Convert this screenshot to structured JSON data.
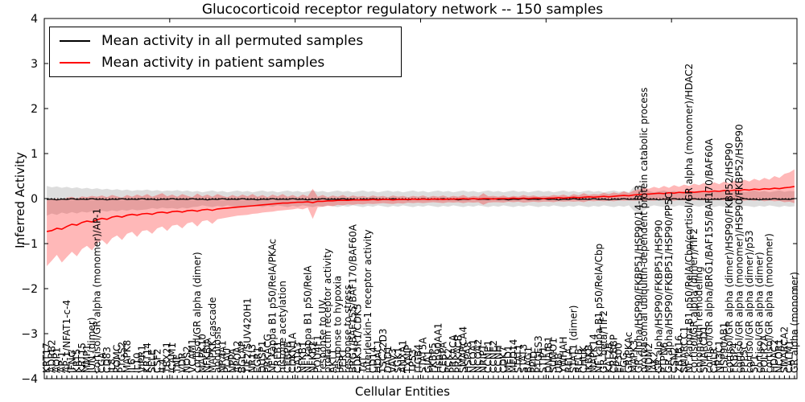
{
  "title": "Glucocorticoid receptor regulatory network -- 150 samples",
  "legend": {
    "items": [
      {
        "label": "Mean activity in all permuted samples",
        "color": "#000000"
      },
      {
        "label": "Mean activity in patient samples",
        "color": "#ff0000"
      }
    ]
  },
  "axes": {
    "ylabel": "Inferred Activity",
    "xlabel": "Cellular Entities",
    "ytick_values": [
      -4,
      -3,
      -2,
      -1,
      0,
      1,
      2,
      3,
      4
    ],
    "ytick_labels": [
      "−4",
      "−3",
      "−2",
      "−1",
      "0",
      "1",
      "2",
      "3",
      "4"
    ],
    "xtick_index_positions": [
      0,
      25,
      50,
      75,
      100,
      125,
      150
    ]
  },
  "chart_data": {
    "type": "line",
    "n": 150,
    "ylim": [
      -4,
      4
    ],
    "title": "Glucocorticoid receptor regulatory network -- 150 samples",
    "xlabel": "Cellular Entities",
    "ylabel": "Inferred Activity",
    "legend_position": "upper left",
    "grid": false,
    "zero_line": {
      "style": "dotted",
      "color": "#000000",
      "y": 0
    },
    "categories": [
      "KRT17",
      "ADRB2",
      "AQP1",
      "AP-1",
      "AP-1/NFAT1-c-4",
      "IFNG",
      "KRT5",
      "KRT15",
      "MMP1",
      "JUN (dimer)",
      "cortisol/GR alpha (monomer)/AP-1",
      "CGA",
      "CD83",
      "IL8",
      "POMC",
      "PTGS2",
      "MAPK8",
      "IL6",
      "IL10",
      "VIPR1",
      "KRT14",
      "SELE",
      "CSF2",
      "IL4",
      "TBX21",
      "ICAM1",
      "TNF",
      "VDR",
      "NOS2",
      "VCAM1",
      "cortisol/GR alpha (dimer)",
      "MAPK10",
      "NFKBIA",
      "MAPKK cascade",
      "apoptosis",
      "NR4A1",
      "PLAU",
      "NPPA",
      "APOA2",
      "BGLAP",
      "TIF2/SUV420H1",
      "NR1I3",
      "EGR1",
      "DUSP1",
      "PRKACG",
      "NF kappa B1 p50/RelA/PKAc",
      "CREB1",
      "histone acetylation",
      "CEBPB",
      "CDKN1A",
      "GATA3",
      "NFKB1",
      "NF kappa B1 p50/RelA",
      "NFKB2",
      "POU4F1",
      "response to UV",
      "prolactin receptor activity",
      "AKT1",
      "response to hypoxia",
      "PER1",
      "response to stress",
      "BRG1/BAF155/BAF170/BAF60A",
      "CDK5R1/CDK5",
      "TAT",
      "interleukin-1 receptor activity",
      "CD14",
      "HDAC1",
      "TSC22D3",
      "DAD1",
      "VAV3",
      "SGK1",
      "ANXA1",
      "TXNIP",
      "TP53",
      "ITGB4",
      "STAT5A",
      "GJA1",
      "FKBP5",
      "Hsp90AA1",
      "CEBPA",
      "PCK2",
      "PRKACA",
      "PRKACB",
      "SMARCA4",
      "HSPA8",
      "NCOA1",
      "NCOA2",
      "NRIP1",
      "CCNE1",
      "CCNE2",
      "CCNH",
      "CDK7",
      "MED1",
      "MED14",
      "STAT1",
      "STAT3",
      "BAG1",
      "PPID",
      "PTGES3",
      "STIP1",
      "DNAJB1",
      "SUMO1",
      "UBB",
      "YWHAH",
      "RELA",
      "STAT1 (dimer)",
      "RELB",
      "CHUK",
      "IKBKB",
      "MAPK14",
      "NF kappa B1 p50/RelA/Cbp",
      "GR beta/TIF2",
      "KAT2B",
      "CREBBP",
      "EP300",
      "FGG",
      "GR/PKAc",
      "MAPK3",
      "GR alpha/HSP90/FKBP51/HSP90/14-3-3",
      "proteasomal ubiquitin-dependent protein catabolic process",
      "MDM2",
      "JAK2",
      "GR alpha/HSP90/FKBP51/HSP90",
      "PTPN6",
      "GR alpha/HSP90/FKBP51/HSP90/PP5C",
      "CSN2",
      "ZBTB16",
      "SMARCC1",
      "NF kappa B1 p50/RelA/Cbp/cortisol/GR alpha (monomer)/HDAC2",
      "cortisol/GR alpha (dimer)/TIF2",
      "chromatin remodeling",
      "SMARCD1",
      "cortisol/GR alpha/BRG1/BAF155/BAF170/BAF60A",
      "CALR",
      "NR3C1",
      "HSP90AB1",
      "cortisol/GR alpha (dimer)/HSP90/FKBP52/HSP90",
      "FKBP4",
      "cortisol/GR alpha (monomer)/HSP90/FKBP52/HSP90",
      "PPP5C",
      "cortisol/GR alpha (dimer)/p53",
      "SP1",
      "cortisol/GR alpha (dimer)",
      "POLR2A",
      "cortisol/GR alpha (monomer)",
      "HDAC2",
      "NCOR1",
      "SMARCA2",
      "CALM1",
      "GR alpha (monomer)"
    ],
    "series": [
      {
        "name": "Mean activity in all permuted samples",
        "color": "#000000",
        "width": 1.2,
        "values": [
          -0.02,
          -0.01,
          -0.03,
          -0.01,
          -0.02,
          0.0,
          -0.02,
          -0.01,
          -0.02,
          0.0,
          -0.02,
          -0.01,
          -0.03,
          -0.01,
          -0.02,
          0.0,
          -0.02,
          -0.01,
          -0.02,
          0.0,
          -0.02,
          -0.01,
          -0.03,
          -0.01,
          -0.02,
          0.0,
          -0.02,
          -0.01,
          -0.02,
          0.0,
          -0.02,
          -0.01,
          -0.03,
          -0.01,
          -0.02,
          0.0,
          -0.02,
          -0.01,
          -0.02,
          0.0,
          -0.02,
          -0.01,
          -0.03,
          -0.01,
          -0.02,
          0.0,
          -0.02,
          -0.01,
          -0.02,
          0.0,
          -0.02,
          -0.01,
          -0.03,
          -0.01,
          -0.02,
          0.0,
          -0.02,
          -0.01,
          -0.02,
          0.0,
          -0.02,
          -0.01,
          -0.03,
          -0.01,
          -0.02,
          0.0,
          -0.02,
          -0.01,
          -0.02,
          0.0,
          -0.02,
          -0.01,
          -0.03,
          -0.01,
          -0.02,
          0.0,
          -0.02,
          -0.01,
          -0.02,
          0.0,
          -0.02,
          -0.01,
          -0.03,
          -0.01,
          -0.02,
          0.0,
          -0.02,
          -0.01,
          -0.02,
          0.0,
          -0.02,
          -0.01,
          -0.03,
          -0.01,
          -0.02,
          0.0,
          -0.02,
          -0.01,
          -0.02,
          0.0,
          -0.02,
          -0.01,
          -0.03,
          -0.01,
          -0.02,
          0.0,
          -0.02,
          -0.01,
          -0.02,
          0.0,
          -0.02,
          -0.01,
          -0.03,
          -0.01,
          -0.02,
          0.0,
          -0.02,
          -0.01,
          -0.02,
          0.0,
          -0.02,
          -0.01,
          -0.03,
          -0.01,
          -0.02,
          0.0,
          -0.02,
          -0.01,
          -0.02,
          0.0,
          -0.02,
          -0.01,
          -0.03,
          -0.01,
          -0.02,
          0.0,
          -0.02,
          -0.01,
          -0.02,
          0.0,
          -0.02,
          -0.01,
          -0.03,
          -0.01,
          -0.02,
          0.0,
          -0.02,
          -0.01,
          -0.02,
          0.0
        ]
      },
      {
        "name": "Mean activity in patient samples",
        "color": "#ff0000",
        "width": 1.6,
        "values": [
          -0.73,
          -0.71,
          -0.66,
          -0.68,
          -0.62,
          -0.57,
          -0.59,
          -0.53,
          -0.5,
          -0.52,
          -0.47,
          -0.44,
          -0.46,
          -0.41,
          -0.39,
          -0.41,
          -0.37,
          -0.35,
          -0.37,
          -0.34,
          -0.33,
          -0.35,
          -0.31,
          -0.3,
          -0.32,
          -0.29,
          -0.28,
          -0.3,
          -0.27,
          -0.26,
          -0.28,
          -0.25,
          -0.24,
          -0.26,
          -0.23,
          -0.22,
          -0.21,
          -0.2,
          -0.19,
          -0.18,
          -0.17,
          -0.16,
          -0.15,
          -0.14,
          -0.13,
          -0.12,
          -0.11,
          -0.1,
          -0.1,
          -0.09,
          -0.08,
          -0.08,
          -0.07,
          -0.09,
          -0.06,
          -0.06,
          -0.05,
          -0.05,
          -0.04,
          -0.04,
          -0.04,
          -0.03,
          -0.03,
          -0.03,
          -0.03,
          -0.02,
          -0.03,
          -0.02,
          -0.02,
          -0.03,
          -0.02,
          -0.02,
          -0.02,
          -0.01,
          -0.02,
          -0.01,
          -0.02,
          -0.01,
          -0.01,
          -0.02,
          -0.01,
          -0.01,
          -0.01,
          0.0,
          -0.01,
          0.0,
          -0.01,
          0.0,
          0.0,
          -0.01,
          0.0,
          0.0,
          0.0,
          0.01,
          0.0,
          0.01,
          0.0,
          0.01,
          0.01,
          0.0,
          0.01,
          0.01,
          0.02,
          0.01,
          0.02,
          0.03,
          0.02,
          0.03,
          0.04,
          0.03,
          0.04,
          0.05,
          0.04,
          0.05,
          0.06,
          0.07,
          0.06,
          0.08,
          0.09,
          0.1,
          0.1,
          0.11,
          0.12,
          0.11,
          0.13,
          0.12,
          0.14,
          0.13,
          0.15,
          0.14,
          0.15,
          0.16,
          0.15,
          0.17,
          0.16,
          0.18,
          0.17,
          0.19,
          0.18,
          0.2,
          0.19,
          0.21,
          0.2,
          0.22,
          0.21,
          0.23,
          0.22,
          0.24,
          0.25,
          0.27
        ]
      }
    ],
    "bands": [
      {
        "name": "permuted-range-band",
        "color": "#bbbbbb",
        "opacity": 0.5,
        "hi": [
          0.28,
          0.25,
          0.27,
          0.24,
          0.26,
          0.23,
          0.25,
          0.22,
          0.24,
          0.21,
          0.23,
          0.2,
          0.22,
          0.19,
          0.21,
          0.18,
          0.2,
          0.17,
          0.19,
          0.18,
          0.2,
          0.17,
          0.19,
          0.16,
          0.18,
          0.17,
          0.19,
          0.16,
          0.18,
          0.15,
          0.17,
          0.14,
          0.16,
          0.18,
          0.15,
          0.17,
          0.14,
          0.16,
          0.18,
          0.15,
          0.17,
          0.14,
          0.16,
          0.18,
          0.15,
          0.17,
          0.14,
          0.16,
          0.18,
          0.15,
          0.17,
          0.14,
          0.16,
          0.18,
          0.15,
          0.17,
          0.14,
          0.16,
          0.18,
          0.15,
          0.17,
          0.14,
          0.16,
          0.18,
          0.15,
          0.17,
          0.14,
          0.16,
          0.18,
          0.15,
          0.17,
          0.14,
          0.16,
          0.18,
          0.15,
          0.17,
          0.14,
          0.16,
          0.18,
          0.15,
          0.17,
          0.14,
          0.16,
          0.18,
          0.15,
          0.17,
          0.14,
          0.16,
          0.18,
          0.15,
          0.17,
          0.14,
          0.16,
          0.18,
          0.15,
          0.17,
          0.14,
          0.16,
          0.18,
          0.15,
          0.17,
          0.14,
          0.16,
          0.18,
          0.15,
          0.17,
          0.14,
          0.16,
          0.18,
          0.15,
          0.17,
          0.14,
          0.16,
          0.18,
          0.15,
          0.17,
          0.14,
          0.26,
          0.3,
          0.26,
          0.17,
          0.14,
          0.16,
          0.18,
          0.15,
          0.17,
          0.14,
          0.16,
          0.18,
          0.15,
          0.17,
          0.14,
          0.16,
          0.18,
          0.15,
          0.17,
          0.14,
          0.16,
          0.18,
          0.15,
          0.16,
          0.18,
          0.15,
          0.17,
          0.14,
          0.16,
          0.18,
          0.15,
          0.17,
          0.16
        ],
        "lo": [
          -0.38,
          -0.33,
          -0.36,
          -0.31,
          -0.34,
          -0.3,
          -0.33,
          -0.29,
          -0.31,
          -0.28,
          -0.3,
          -0.27,
          -0.29,
          -0.26,
          -0.28,
          -0.25,
          -0.27,
          -0.24,
          -0.26,
          -0.25,
          -0.24,
          -0.21,
          -0.23,
          -0.2,
          -0.22,
          -0.21,
          -0.23,
          -0.2,
          -0.22,
          -0.19,
          -0.18,
          -0.15,
          -0.17,
          -0.19,
          -0.16,
          -0.18,
          -0.15,
          -0.17,
          -0.19,
          -0.16,
          -0.18,
          -0.15,
          -0.17,
          -0.19,
          -0.16,
          -0.18,
          -0.15,
          -0.17,
          -0.19,
          -0.16,
          -0.18,
          -0.15,
          -0.17,
          -0.19,
          -0.16,
          -0.18,
          -0.15,
          -0.17,
          -0.19,
          -0.16,
          -0.18,
          -0.15,
          -0.17,
          -0.19,
          -0.16,
          -0.18,
          -0.15,
          -0.17,
          -0.19,
          -0.16,
          -0.18,
          -0.15,
          -0.17,
          -0.19,
          -0.16,
          -0.18,
          -0.15,
          -0.17,
          -0.19,
          -0.16,
          -0.18,
          -0.15,
          -0.17,
          -0.19,
          -0.16,
          -0.18,
          -0.15,
          -0.17,
          -0.19,
          -0.16,
          -0.18,
          -0.15,
          -0.17,
          -0.19,
          -0.16,
          -0.18,
          -0.15,
          -0.17,
          -0.19,
          -0.16,
          -0.18,
          -0.15,
          -0.17,
          -0.19,
          -0.16,
          -0.18,
          -0.15,
          -0.17,
          -0.19,
          -0.16,
          -0.18,
          -0.15,
          -0.17,
          -0.19,
          -0.16,
          -0.18,
          -0.15,
          -0.27,
          -0.32,
          -0.27,
          -0.18,
          -0.15,
          -0.17,
          -0.19,
          -0.16,
          -0.18,
          -0.15,
          -0.17,
          -0.19,
          -0.16,
          -0.18,
          -0.15,
          -0.17,
          -0.19,
          -0.16,
          -0.18,
          -0.15,
          -0.17,
          -0.19,
          -0.16,
          -0.17,
          -0.19,
          -0.16,
          -0.18,
          -0.15,
          -0.17,
          -0.19,
          -0.16,
          -0.18,
          -0.17
        ]
      },
      {
        "name": "patient-range-band",
        "color": "#ff0000",
        "opacity": 0.28,
        "hi": [
          -0.04,
          -0.02,
          0.0,
          -0.03,
          0.02,
          0.04,
          0.0,
          0.05,
          0.03,
          0.06,
          0.04,
          0.07,
          0.03,
          0.08,
          0.05,
          0.02,
          0.08,
          0.04,
          0.09,
          0.05,
          0.1,
          0.04,
          0.08,
          0.12,
          0.05,
          0.09,
          0.04,
          0.1,
          0.06,
          0.03,
          0.11,
          0.05,
          0.09,
          0.04,
          0.1,
          0.06,
          0.03,
          0.08,
          0.04,
          0.09,
          0.05,
          0.1,
          0.04,
          0.08,
          0.03,
          0.09,
          0.05,
          0.1,
          0.04,
          0.08,
          0.03,
          0.09,
          0.05,
          0.22,
          0.04,
          0.08,
          0.03,
          0.07,
          0.04,
          0.08,
          0.03,
          0.07,
          0.04,
          0.06,
          0.03,
          0.07,
          0.04,
          0.06,
          0.03,
          0.07,
          0.04,
          0.06,
          0.03,
          0.06,
          0.04,
          0.07,
          0.03,
          0.06,
          0.04,
          0.07,
          0.03,
          0.06,
          0.04,
          0.08,
          0.03,
          0.06,
          0.04,
          0.12,
          0.05,
          0.06,
          0.04,
          0.07,
          0.03,
          0.06,
          0.04,
          0.08,
          0.05,
          0.07,
          0.04,
          0.06,
          0.05,
          0.08,
          0.06,
          0.09,
          0.05,
          0.1,
          0.07,
          0.12,
          0.08,
          0.1,
          0.09,
          0.13,
          0.1,
          0.14,
          0.11,
          0.16,
          0.12,
          0.18,
          0.2,
          0.24,
          0.22,
          0.26,
          0.23,
          0.28,
          0.24,
          0.3,
          0.26,
          0.31,
          0.28,
          0.33,
          0.3,
          0.35,
          0.31,
          0.36,
          0.32,
          0.38,
          0.34,
          0.4,
          0.36,
          0.42,
          0.38,
          0.44,
          0.4,
          0.46,
          0.42,
          0.5,
          0.46,
          0.55,
          0.58,
          0.65
        ],
        "lo": [
          -1.5,
          -1.38,
          -1.25,
          -1.42,
          -1.3,
          -1.18,
          -1.28,
          -1.12,
          -1.05,
          -1.15,
          -1.0,
          -0.92,
          -1.02,
          -0.88,
          -0.82,
          -0.92,
          -0.78,
          -0.74,
          -0.85,
          -0.72,
          -0.7,
          -0.78,
          -0.66,
          -0.62,
          -0.72,
          -0.6,
          -0.58,
          -0.66,
          -0.55,
          -0.52,
          -0.62,
          -0.5,
          -0.48,
          -0.56,
          -0.46,
          -0.44,
          -0.42,
          -0.4,
          -0.38,
          -0.37,
          -0.36,
          -0.34,
          -0.33,
          -0.31,
          -0.3,
          -0.29,
          -0.27,
          -0.26,
          -0.25,
          -0.24,
          -0.22,
          -0.24,
          -0.2,
          -0.45,
          -0.19,
          -0.18,
          -0.16,
          -0.17,
          -0.14,
          -0.15,
          -0.13,
          -0.14,
          -0.12,
          -0.13,
          -0.11,
          -0.12,
          -0.11,
          -0.1,
          -0.11,
          -0.12,
          -0.1,
          -0.11,
          -0.09,
          -0.1,
          -0.09,
          -0.1,
          -0.09,
          -0.08,
          -0.09,
          -0.1,
          -0.08,
          -0.09,
          -0.08,
          -0.1,
          -0.08,
          -0.09,
          -0.08,
          -0.14,
          -0.09,
          -0.08,
          -0.08,
          -0.09,
          -0.07,
          -0.08,
          -0.07,
          -0.09,
          -0.08,
          -0.07,
          -0.08,
          -0.07,
          -0.07,
          -0.08,
          -0.06,
          -0.07,
          -0.06,
          -0.07,
          -0.06,
          -0.08,
          -0.05,
          -0.06,
          -0.05,
          -0.06,
          -0.05,
          -0.06,
          -0.04,
          -0.05,
          -0.04,
          -0.05,
          -0.04,
          -0.05,
          -0.04,
          -0.05,
          -0.03,
          -0.04,
          -0.03,
          -0.05,
          -0.03,
          -0.04,
          -0.03,
          -0.04,
          -0.03,
          -0.04,
          -0.02,
          -0.04,
          -0.03,
          -0.04,
          -0.02,
          -0.04,
          -0.03,
          -0.05,
          -0.03,
          -0.05,
          -0.03,
          -0.06,
          -0.04,
          -0.06,
          -0.05,
          -0.08,
          -0.07,
          -0.1
        ]
      }
    ]
  }
}
